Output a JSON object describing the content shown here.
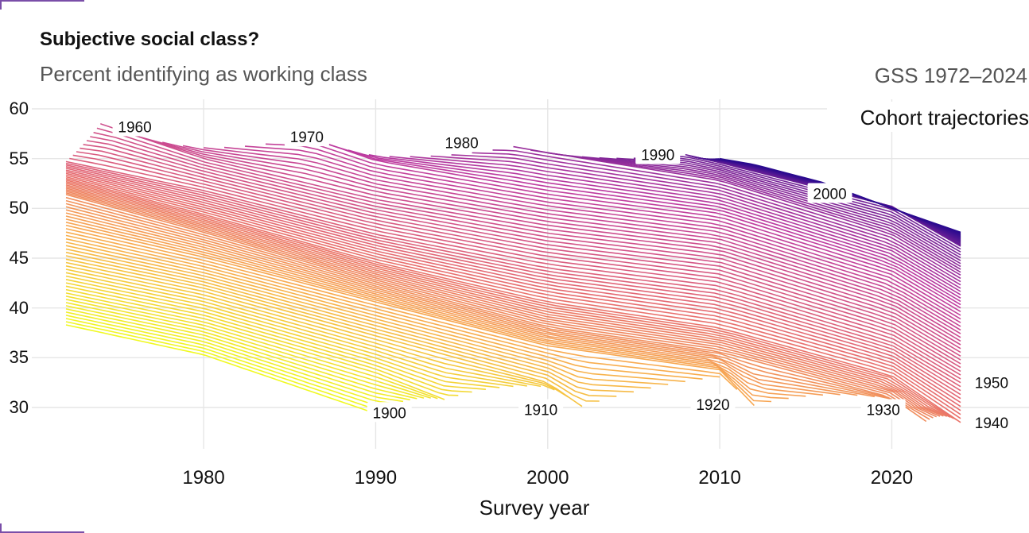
{
  "header": {
    "title": "Subjective social class?",
    "subtitle": "Percent identifying as working class",
    "source": "GSS 1972–2024"
  },
  "colors": {
    "oldest_cohort": "#f0f921",
    "middle_cohort": "#e8606a",
    "youngest_cohort": "#2a0a8f",
    "grid": "#e6e6e6"
  },
  "chart_data": {
    "type": "line",
    "title": "Subjective social class?",
    "subtitle": "Percent identifying as working class",
    "annotation": "Cohort trajectories",
    "xlabel": "Survey year",
    "ylabel": "",
    "xlim": [
      1972,
      2024
    ],
    "ylim": [
      27,
      60
    ],
    "xticks": [
      1980,
      1990,
      2000,
      2010,
      2020
    ],
    "yticks": [
      30,
      35,
      40,
      45,
      50,
      55,
      60
    ],
    "grid": true,
    "legend": "none",
    "color_scale": "plasma (oldest cohort yellow, youngest cohort dark purple)",
    "cohort_range": [
      1890,
      2006
    ],
    "cohort_labels": [
      {
        "cohort": 1900,
        "x": 1990.8,
        "y": 29.5
      },
      {
        "cohort": 1910,
        "x": 1999.6,
        "y": 29.8
      },
      {
        "cohort": 1920,
        "x": 2009.6,
        "y": 30.3
      },
      {
        "cohort": 1930,
        "x": 2019.5,
        "y": 29.8
      },
      {
        "cohort": 1940,
        "x": 2025.8,
        "y": 28.5
      },
      {
        "cohort": 1950,
        "x": 2025.8,
        "y": 32.5
      },
      {
        "cohort": 1960,
        "x": 1976.0,
        "y": 58.2
      },
      {
        "cohort": 1970,
        "x": 1986.0,
        "y": 57.2
      },
      {
        "cohort": 1980,
        "x": 1995.0,
        "y": 56.6
      },
      {
        "cohort": 1990,
        "x": 2006.4,
        "y": 55.4
      },
      {
        "cohort": 2000,
        "x": 2016.4,
        "y": 51.5
      }
    ],
    "series": [
      {
        "cohort": 1890,
        "x": [
          1972,
          1980,
          1990
        ],
        "y": [
          38.3,
          35.3,
          29.4
        ]
      },
      {
        "cohort": 1900,
        "x": [
          1972,
          1980,
          1990,
          1994
        ],
        "y": [
          41.5,
          38.6,
          33.5,
          30.8
        ]
      },
      {
        "cohort": 1910,
        "x": [
          1972,
          1980,
          1990,
          2000,
          2002
        ],
        "y": [
          44.9,
          42.0,
          37.2,
          32.5,
          30.1
        ]
      },
      {
        "cohort": 1920,
        "x": [
          1972,
          1980,
          1990,
          2000,
          2010,
          2012
        ],
        "y": [
          48.3,
          45.1,
          40.6,
          36.2,
          33.8,
          30.2
        ]
      },
      {
        "cohort": 1930,
        "x": [
          1972,
          1980,
          1990,
          2000,
          2010,
          2020,
          2022
        ],
        "y": [
          51.4,
          47.6,
          42.6,
          38.1,
          35.6,
          31.0,
          28.6
        ]
      },
      {
        "cohort": 1940,
        "x": [
          1972,
          1980,
          1990,
          2000,
          2010,
          2020,
          2024
        ],
        "y": [
          53.0,
          49.4,
          44.6,
          40.6,
          38.0,
          33.2,
          28.5
        ]
      },
      {
        "cohort": 1950,
        "x": [
          1972,
          1980,
          1990,
          2000,
          2010,
          2020,
          2024
        ],
        "y": [
          54.7,
          51.8,
          47.4,
          44.0,
          41.8,
          36.6,
          32.5
        ]
      },
      {
        "cohort": 1960,
        "x": [
          1974,
          1980,
          1990,
          2000,
          2010,
          2020,
          2024
        ],
        "y": [
          58.5,
          55.0,
          50.9,
          47.9,
          45.8,
          40.4,
          36.3
        ]
      },
      {
        "cohort": 1970,
        "x": [
          1986,
          1990,
          2000,
          2010,
          2020,
          2024
        ],
        "y": [
          57.2,
          54.8,
          51.8,
          49.5,
          44.1,
          40.0
        ]
      },
      {
        "cohort": 1980,
        "x": [
          1998,
          2000,
          2010,
          2020,
          2024
        ],
        "y": [
          56.2,
          55.6,
          52.8,
          47.4,
          43.3
        ]
      },
      {
        "cohort": 1990,
        "x": [
          2008,
          2010,
          2020,
          2024
        ],
        "y": [
          55.4,
          54.6,
          50.2,
          46.2
        ]
      },
      {
        "cohort": 2006,
        "x": [
          2010,
          2012,
          2016,
          2020,
          2024
        ],
        "y": [
          55.0,
          54.4,
          52.6,
          50.0,
          47.6
        ]
      }
    ]
  }
}
